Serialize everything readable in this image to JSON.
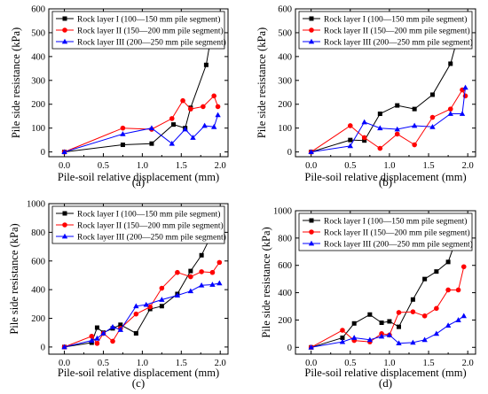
{
  "figure": {
    "panels": [
      "(a)",
      "(b)",
      "(c)",
      "(d)"
    ]
  },
  "chart_data": [
    {
      "type": "line",
      "panel_label": "(a)",
      "xlabel": "Pile-soil relative displacement (mm)",
      "ylabel": "Pile side resistance (kPa)",
      "xlim": [
        -0.2,
        2.1
      ],
      "ylim": [
        -20,
        600
      ],
      "xticks": [
        "0.0",
        "0.5",
        "1.0",
        "1.5",
        "2.0"
      ],
      "yticks": [
        "0",
        "100",
        "200",
        "300",
        "400",
        "500",
        "600"
      ],
      "legend_position": "top-left",
      "series": [
        {
          "name": "Rock layer I (100—150 mm pile segment)",
          "color": "#000000",
          "marker": "square",
          "x": [
            0,
            0.75,
            1.12,
            1.4,
            1.55,
            1.62,
            1.82,
            1.92,
            1.97
          ],
          "y": [
            0,
            30,
            35,
            115,
            100,
            185,
            365,
            555,
            550
          ]
        },
        {
          "name": "Rock layer II (150—200 mm pile segment)",
          "color": "#ff0000",
          "marker": "circle",
          "x": [
            0,
            0.75,
            1.12,
            1.38,
            1.52,
            1.62,
            1.78,
            1.92,
            1.97
          ],
          "y": [
            0,
            100,
            95,
            140,
            215,
            180,
            190,
            235,
            190
          ]
        },
        {
          "name": "Rock layer III (200—250 mm pile segment)",
          "color": "#0000ff",
          "marker": "triangle",
          "x": [
            0,
            0.75,
            1.12,
            1.38,
            1.55,
            1.65,
            1.8,
            1.92,
            1.97
          ],
          "y": [
            0,
            75,
            100,
            35,
            95,
            60,
            110,
            105,
            155
          ]
        }
      ]
    },
    {
      "type": "line",
      "panel_label": "(b)",
      "xlabel": "Pile-soil relative displacement (mm)",
      "ylabel": "Pile side resistance (kPa)",
      "xlim": [
        -0.2,
        2.1
      ],
      "ylim": [
        -20,
        600
      ],
      "xticks": [
        "0.0",
        "0.5",
        "1.0",
        "1.5",
        "2.0"
      ],
      "yticks": [
        "0",
        "100",
        "200",
        "300",
        "400",
        "500",
        "600"
      ],
      "legend_position": "top-left",
      "series": [
        {
          "name": "Rock layer I (100—150 mm pile segment)",
          "color": "#000000",
          "marker": "square",
          "x": [
            0,
            0.5,
            0.68,
            0.88,
            1.1,
            1.32,
            1.55,
            1.78,
            1.93,
            1.97
          ],
          "y": [
            0,
            50,
            48,
            160,
            195,
            180,
            240,
            370,
            550,
            530
          ]
        },
        {
          "name": "Rock layer II (150—200 mm pile segment)",
          "color": "#ff0000",
          "marker": "circle",
          "x": [
            0,
            0.5,
            0.68,
            0.88,
            1.1,
            1.32,
            1.55,
            1.78,
            1.93,
            1.97
          ],
          "y": [
            0,
            110,
            60,
            15,
            75,
            30,
            145,
            180,
            260,
            235
          ]
        },
        {
          "name": "Rock layer III (200—250 mm pile segment)",
          "color": "#0000ff",
          "marker": "triangle",
          "x": [
            0,
            0.5,
            0.68,
            0.88,
            1.1,
            1.32,
            1.55,
            1.78,
            1.93,
            1.97
          ],
          "y": [
            0,
            25,
            125,
            100,
            95,
            110,
            105,
            160,
            160,
            270
          ]
        }
      ]
    },
    {
      "type": "line",
      "panel_label": "(c)",
      "xlabel": "Pile-soil relative displacement (mm)",
      "ylabel": "Pile side resistance (kPa)",
      "xlim": [
        -0.2,
        2.1
      ],
      "ylim": [
        -50,
        1000
      ],
      "xticks": [
        "0.0",
        "0.5",
        "1.0",
        "1.5",
        "2.0"
      ],
      "yticks": [
        "0",
        "200",
        "400",
        "600",
        "800",
        "1000"
      ],
      "legend_position": "top-left",
      "series": [
        {
          "name": "Rock layer I (100—150 mm pile segment)",
          "color": "#000000",
          "marker": "square",
          "x": [
            0,
            0.35,
            0.42,
            0.5,
            0.62,
            0.72,
            0.92,
            1.1,
            1.25,
            1.45,
            1.62,
            1.76,
            1.95,
            1.99
          ],
          "y": [
            0,
            30,
            135,
            100,
            130,
            155,
            95,
            265,
            285,
            370,
            530,
            640,
            850,
            840
          ]
        },
        {
          "name": "Rock layer II (150—200 mm pile segment)",
          "color": "#ff0000",
          "marker": "circle",
          "x": [
            0,
            0.35,
            0.42,
            0.5,
            0.62,
            0.72,
            0.92,
            1.1,
            1.25,
            1.45,
            1.62,
            1.76,
            1.9,
            1.99
          ],
          "y": [
            0,
            75,
            25,
            95,
            40,
            130,
            230,
            280,
            410,
            520,
            490,
            525,
            520,
            590
          ]
        },
        {
          "name": "Rock layer III (200—250 mm pile segment)",
          "color": "#0000ff",
          "marker": "triangle",
          "x": [
            0,
            0.35,
            0.42,
            0.5,
            0.62,
            0.72,
            0.92,
            1.05,
            1.25,
            1.45,
            1.62,
            1.76,
            1.9,
            1.99
          ],
          "y": [
            0,
            45,
            60,
            95,
            140,
            120,
            285,
            295,
            330,
            360,
            390,
            430,
            435,
            445
          ]
        }
      ]
    },
    {
      "type": "line",
      "panel_label": "(d)",
      "xlabel": "Pile-soil relative displacement (mm)",
      "ylabel": "Pile side resistance (kPa)",
      "xlim": [
        -0.2,
        2.1
      ],
      "ylim": [
        -50,
        1000
      ],
      "xticks": [
        "0.0",
        "0.5",
        "1.0",
        "1.5",
        "2.0"
      ],
      "yticks": [
        "0",
        "200",
        "400",
        "600",
        "800",
        "1000"
      ],
      "legend_position": "top-left",
      "series": [
        {
          "name": "Rock layer I (100—150 mm pile segment)",
          "color": "#000000",
          "marker": "square",
          "x": [
            0,
            0.4,
            0.55,
            0.75,
            0.9,
            1.0,
            1.12,
            1.3,
            1.45,
            1.6,
            1.75,
            1.88,
            1.95
          ],
          "y": [
            0,
            70,
            175,
            240,
            180,
            190,
            150,
            350,
            500,
            555,
            625,
            835,
            775
          ]
        },
        {
          "name": "Rock layer II (150—200 mm pile segment)",
          "color": "#ff0000",
          "marker": "circle",
          "x": [
            0,
            0.4,
            0.55,
            0.75,
            0.9,
            1.0,
            1.12,
            1.3,
            1.45,
            1.6,
            1.75,
            1.88,
            1.95
          ],
          "y": [
            0,
            125,
            50,
            40,
            100,
            90,
            255,
            260,
            230,
            285,
            420,
            420,
            590
          ]
        },
        {
          "name": "Rock layer III (200—250 mm pile segment)",
          "color": "#0000ff",
          "marker": "triangle",
          "x": [
            0,
            0.4,
            0.55,
            0.75,
            0.9,
            1.0,
            1.12,
            1.3,
            1.45,
            1.6,
            1.75,
            1.88,
            1.95
          ],
          "y": [
            0,
            40,
            70,
            55,
            80,
            90,
            30,
            35,
            55,
            100,
            160,
            200,
            230
          ]
        }
      ]
    }
  ]
}
